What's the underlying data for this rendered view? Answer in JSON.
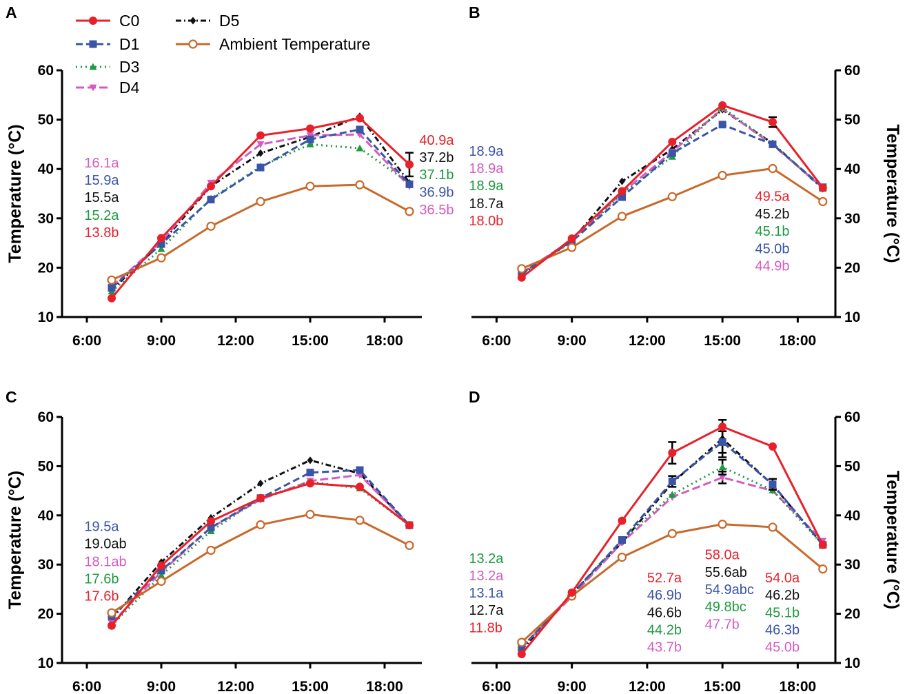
{
  "legend": [
    {
      "key": "C0",
      "label": "C0"
    },
    {
      "key": "D1",
      "label": "D1"
    },
    {
      "key": "D3",
      "label": "D3"
    },
    {
      "key": "D4",
      "label": "D4"
    },
    {
      "key": "D5",
      "label": "D5"
    },
    {
      "key": "Amb",
      "label": "Ambient Temperature"
    }
  ],
  "series_styles": {
    "C0": {
      "color": "#e8202a",
      "dash": "",
      "marker": "circle-filled"
    },
    "D1": {
      "color": "#3a54a8",
      "dash": "10,5",
      "marker": "square"
    },
    "D3": {
      "color": "#1e9a40",
      "dash": "2,5",
      "marker": "triangle-up"
    },
    "D4": {
      "color": "#d45cc0",
      "dash": "12,5",
      "marker": "triangle-down"
    },
    "D5": {
      "color": "#111111",
      "dash": "8,4,2,4",
      "marker": "diamond"
    },
    "Amb": {
      "color": "#c8692a",
      "dash": "",
      "marker": "circle-open"
    }
  },
  "chart_data": [
    {
      "type": "line",
      "panel": "A",
      "ylabel": "Temperature (°C)",
      "ylabel_side": "left",
      "ylim": [
        10,
        60
      ],
      "yticks": [
        "10",
        "20",
        "30",
        "40",
        "50",
        "60"
      ],
      "xlim": [
        5.0,
        19.5
      ],
      "xticks": [
        "6:00",
        "9:00",
        "12:00",
        "15:00",
        "18:00"
      ],
      "x": [
        7,
        9,
        11,
        13,
        15,
        17,
        19
      ],
      "series": [
        {
          "name": "D5",
          "values": [
            15.5,
            25.0,
            36.5,
            43.2,
            46.5,
            50.7,
            37.2
          ],
          "err": [
            null,
            null,
            null,
            null,
            null,
            null,
            null
          ]
        },
        {
          "name": "D4",
          "values": [
            16.1,
            25.2,
            37.2,
            45.0,
            46.8,
            47.0,
            36.5
          ],
          "err": [
            null,
            null,
            null,
            null,
            null,
            null,
            null
          ]
        },
        {
          "name": "D3",
          "values": [
            15.2,
            23.8,
            34.0,
            40.5,
            45.0,
            44.2,
            37.1
          ],
          "err": [
            null,
            null,
            null,
            null,
            null,
            null,
            null
          ]
        },
        {
          "name": "D1",
          "values": [
            15.9,
            24.8,
            33.8,
            40.3,
            46.0,
            48.0,
            36.9
          ],
          "err": [
            null,
            null,
            null,
            null,
            null,
            null,
            null
          ]
        },
        {
          "name": "Amb",
          "values": [
            17.5,
            22.0,
            28.4,
            33.4,
            36.5,
            36.8,
            31.4
          ],
          "err": [
            null,
            null,
            null,
            null,
            null,
            null,
            null
          ]
        },
        {
          "name": "C0",
          "values": [
            13.8,
            26.0,
            36.5,
            46.8,
            48.2,
            50.3,
            40.9
          ],
          "err": [
            null,
            null,
            null,
            null,
            null,
            null,
            2.4
          ]
        }
      ],
      "annotations": [
        {
          "text": "16.1a",
          "series": "D4",
          "x": 5.9,
          "y": 40.3
        },
        {
          "text": "15.9a",
          "series": "D1",
          "x": 5.9,
          "y": 36.8
        },
        {
          "text": "15.5a",
          "series": "D5",
          "x": 5.9,
          "y": 33.3
        },
        {
          "text": "15.2a",
          "series": "D3",
          "x": 5.9,
          "y": 29.7
        },
        {
          "text": "13.8b",
          "series": "C0",
          "x": 5.9,
          "y": 26.2
        },
        {
          "text": "40.9a",
          "series": "C0",
          "x": 19.4,
          "y": 44.9
        },
        {
          "text": "37.2b",
          "series": "D5",
          "x": 19.4,
          "y": 41.4
        },
        {
          "text": "37.1b",
          "series": "D3",
          "x": 19.4,
          "y": 37.9
        },
        {
          "text": "36.9b",
          "series": "D1",
          "x": 19.4,
          "y": 34.4
        },
        {
          "text": "36.5b",
          "series": "D4",
          "x": 19.4,
          "y": 30.8
        }
      ]
    },
    {
      "type": "line",
      "panel": "B",
      "ylabel": "Temperature (°C)",
      "ylabel_side": "right",
      "ylim": [
        10,
        60
      ],
      "yticks": [
        "10",
        "20",
        "30",
        "40",
        "50",
        "60"
      ],
      "xlim": [
        5.0,
        19.5
      ],
      "xticks": [
        "6:00",
        "9:00",
        "12:00",
        "15:00",
        "18:00"
      ],
      "x": [
        7,
        9,
        11,
        13,
        15,
        17,
        19
      ],
      "series": [
        {
          "name": "D5",
          "values": [
            18.7,
            25.5,
            37.5,
            44.0,
            52.0,
            45.2,
            36.0
          ],
          "err": [
            null,
            null,
            null,
            null,
            null,
            null,
            null
          ]
        },
        {
          "name": "D4",
          "values": [
            18.9,
            25.6,
            35.2,
            43.5,
            52.2,
            44.9,
            36.2
          ],
          "err": [
            null,
            null,
            null,
            null,
            null,
            null,
            null
          ]
        },
        {
          "name": "D3",
          "values": [
            18.9,
            25.2,
            35.0,
            42.5,
            52.5,
            45.1,
            36.0
          ],
          "err": [
            null,
            null,
            null,
            null,
            null,
            null,
            null
          ]
        },
        {
          "name": "D1",
          "values": [
            18.9,
            25.3,
            34.3,
            43.2,
            49.0,
            45.0,
            36.3
          ],
          "err": [
            null,
            null,
            null,
            null,
            null,
            null,
            null
          ]
        },
        {
          "name": "Amb",
          "values": [
            19.8,
            24.1,
            30.4,
            34.4,
            38.7,
            40.1,
            33.4
          ],
          "err": [
            null,
            null,
            null,
            null,
            null,
            null,
            null
          ]
        },
        {
          "name": "C0",
          "values": [
            18.0,
            25.9,
            35.5,
            45.5,
            52.9,
            49.5,
            36.2
          ],
          "err": [
            null,
            null,
            null,
            null,
            null,
            1.0,
            null
          ]
        }
      ],
      "annotations": [
        {
          "text": "18.9a",
          "series": "D1",
          "x": 4.9,
          "y": 42.7
        },
        {
          "text": "18.9a",
          "series": "D4",
          "x": 4.9,
          "y": 39.2
        },
        {
          "text": "18.9a",
          "series": "D3",
          "x": 4.9,
          "y": 35.7
        },
        {
          "text": "18.7a",
          "series": "D5",
          "x": 4.9,
          "y": 32.1
        },
        {
          "text": "18.0b",
          "series": "C0",
          "x": 4.9,
          "y": 28.6
        },
        {
          "text": "49.5a",
          "series": "C0",
          "x": 16.3,
          "y": 33.5
        },
        {
          "text": "45.2b",
          "series": "D5",
          "x": 16.3,
          "y": 30.0
        },
        {
          "text": "45.1b",
          "series": "D3",
          "x": 16.3,
          "y": 26.5
        },
        {
          "text": "45.0b",
          "series": "D1",
          "x": 16.3,
          "y": 22.9
        },
        {
          "text": "44.9b",
          "series": "D4",
          "x": 16.3,
          "y": 19.4
        }
      ]
    },
    {
      "type": "line",
      "panel": "C",
      "ylabel": "Temperature (°C)",
      "ylabel_side": "left",
      "ylim": [
        10,
        60
      ],
      "yticks": [
        "10",
        "20",
        "30",
        "40",
        "50",
        "60"
      ],
      "xlim": [
        5.0,
        19.5
      ],
      "xticks": [
        "6:00",
        "9:00",
        "12:00",
        "15:00",
        "18:00"
      ],
      "x": [
        7,
        9,
        11,
        13,
        15,
        17,
        19
      ],
      "series": [
        {
          "name": "D5",
          "values": [
            19.0,
            30.5,
            39.5,
            46.5,
            51.2,
            48.5,
            38.0
          ],
          "err": [
            null,
            null,
            null,
            null,
            null,
            null,
            null
          ]
        },
        {
          "name": "D4",
          "values": [
            18.1,
            28.5,
            37.5,
            43.2,
            47.0,
            48.2,
            38.0
          ],
          "err": [
            null,
            null,
            null,
            null,
            null,
            null,
            null
          ]
        },
        {
          "name": "D3",
          "values": [
            17.6,
            27.8,
            36.8,
            43.5,
            46.8,
            45.5,
            38.0
          ],
          "err": [
            null,
            null,
            null,
            null,
            null,
            null,
            null
          ]
        },
        {
          "name": "D1",
          "values": [
            19.5,
            28.8,
            37.5,
            43.5,
            48.7,
            49.2,
            38.0
          ],
          "err": [
            null,
            null,
            null,
            null,
            null,
            null,
            null
          ]
        },
        {
          "name": "Amb",
          "values": [
            20.2,
            26.6,
            32.9,
            38.1,
            40.2,
            39.0,
            33.9
          ],
          "err": [
            null,
            null,
            null,
            null,
            null,
            null,
            null
          ]
        },
        {
          "name": "C0",
          "values": [
            17.6,
            29.8,
            38.8,
            43.5,
            46.5,
            45.8,
            38.0
          ],
          "err": [
            null,
            null,
            null,
            null,
            null,
            null,
            null
          ]
        }
      ],
      "annotations": [
        {
          "text": "19.5a",
          "series": "D1",
          "x": 5.9,
          "y": 36.8
        },
        {
          "text": "19.0ab",
          "series": "D5",
          "x": 5.9,
          "y": 33.3
        },
        {
          "text": "18.1ab",
          "series": "D4",
          "x": 5.9,
          "y": 29.7
        },
        {
          "text": "17.6b",
          "series": "D3",
          "x": 5.9,
          "y": 26.2
        },
        {
          "text": "17.6b",
          "series": "C0",
          "x": 5.9,
          "y": 22.7
        }
      ]
    },
    {
      "type": "line",
      "panel": "D",
      "ylabel": "Temperature (°C)",
      "ylabel_side": "right",
      "ylim": [
        10,
        60
      ],
      "yticks": [
        "10",
        "20",
        "30",
        "40",
        "50",
        "60"
      ],
      "xlim": [
        5.0,
        19.5
      ],
      "xticks": [
        "6:00",
        "9:00",
        "12:00",
        "15:00",
        "18:00"
      ],
      "x": [
        7,
        9,
        11,
        13,
        15,
        17,
        19
      ],
      "series": [
        {
          "name": "D5",
          "values": [
            12.7,
            24.0,
            34.5,
            46.6,
            55.6,
            46.2,
            34.0
          ],
          "err": [
            null,
            null,
            null,
            null,
            3.8,
            null,
            null
          ]
        },
        {
          "name": "D4",
          "values": [
            13.2,
            23.5,
            34.5,
            43.7,
            47.7,
            45.0,
            34.8
          ],
          "err": [
            null,
            null,
            null,
            null,
            1.2,
            null,
            null
          ]
        },
        {
          "name": "D3",
          "values": [
            13.2,
            23.8,
            35.0,
            44.2,
            49.8,
            45.1,
            34.0
          ],
          "err": [
            null,
            null,
            null,
            null,
            1.5,
            null,
            null
          ]
        },
        {
          "name": "D1",
          "values": [
            13.1,
            24.0,
            35.0,
            46.9,
            54.9,
            46.3,
            34.0
          ],
          "err": [
            null,
            null,
            null,
            1.1,
            2.2,
            1.1,
            null
          ]
        },
        {
          "name": "Amb",
          "values": [
            14.2,
            23.6,
            31.5,
            36.3,
            38.2,
            37.6,
            29.1
          ],
          "err": [
            null,
            null,
            null,
            null,
            null,
            null,
            null
          ]
        },
        {
          "name": "C0",
          "values": [
            11.8,
            24.3,
            38.9,
            52.7,
            58.0,
            54.0,
            34.0
          ],
          "err": [
            null,
            null,
            null,
            2.2,
            null,
            null,
            null
          ]
        }
      ],
      "annotations": [
        {
          "text": "13.2a",
          "series": "D3",
          "x": 4.9,
          "y": 30.3
        },
        {
          "text": "13.2a",
          "series": "D4",
          "x": 4.9,
          "y": 26.8
        },
        {
          "text": "13.1a",
          "series": "D1",
          "x": 4.9,
          "y": 23.3
        },
        {
          "text": "12.7a",
          "series": "D5",
          "x": 4.9,
          "y": 19.8
        },
        {
          "text": "11.8b",
          "series": "C0",
          "x": 4.9,
          "y": 16.2
        },
        {
          "text": "52.7a",
          "series": "C0",
          "x": 12.0,
          "y": 26.4
        },
        {
          "text": "46.9b",
          "series": "D1",
          "x": 12.0,
          "y": 22.9
        },
        {
          "text": "46.6b",
          "series": "D5",
          "x": 12.0,
          "y": 19.3
        },
        {
          "text": "44.2b",
          "series": "D3",
          "x": 12.0,
          "y": 15.8
        },
        {
          "text": "43.7b",
          "series": "D4",
          "x": 12.0,
          "y": 12.3
        },
        {
          "text": "58.0a",
          "series": "C0",
          "x": 14.3,
          "y": 31.1
        },
        {
          "text": "55.6ab",
          "series": "D5",
          "x": 14.3,
          "y": 27.5
        },
        {
          "text": "54.9abc",
          "series": "D1",
          "x": 14.3,
          "y": 24.0
        },
        {
          "text": "49.8bc",
          "series": "D3",
          "x": 14.3,
          "y": 20.5
        },
        {
          "text": "47.7b",
          "series": "D4",
          "x": 14.3,
          "y": 16.9
        },
        {
          "text": "54.0a",
          "series": "C0",
          "x": 16.7,
          "y": 26.4
        },
        {
          "text": "46.2b",
          "series": "D5",
          "x": 16.7,
          "y": 22.9
        },
        {
          "text": "45.1b",
          "series": "D3",
          "x": 16.7,
          "y": 19.3
        },
        {
          "text": "46.3b",
          "series": "D1",
          "x": 16.7,
          "y": 15.8
        },
        {
          "text": "45.0b",
          "series": "D4",
          "x": 16.7,
          "y": 12.3
        }
      ]
    }
  ]
}
